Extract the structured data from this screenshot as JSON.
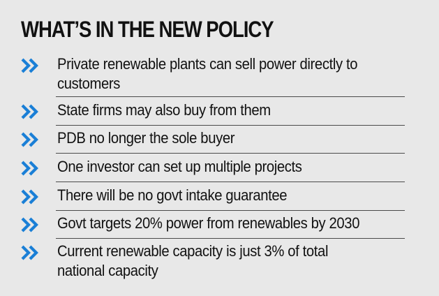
{
  "heading": "WHAT’S IN THE NEW POLICY",
  "accent_color": "#1a7fd6",
  "bullet_icon": "double-chevron-right-icon",
  "items": [
    {
      "text": "Private renewable plants can sell power directly to customers"
    },
    {
      "text": "State firms may also buy from them"
    },
    {
      "text": "PDB no longer the sole buyer"
    },
    {
      "text": "One investor can set up multiple projects"
    },
    {
      "text": "There will be no govt intake guarantee"
    },
    {
      "text": "Govt targets 20% power from renewables by 2030"
    },
    {
      "text": "Current renewable capacity is just 3% of total national capacity"
    }
  ]
}
